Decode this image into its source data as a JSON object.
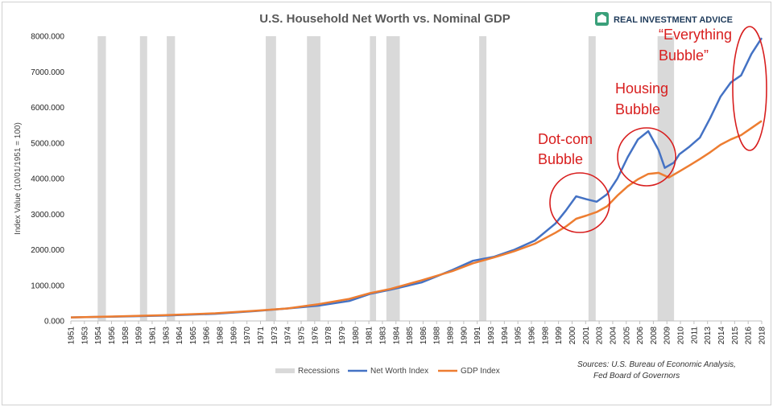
{
  "chart_data": {
    "type": "line",
    "title": "U.S. Household Net Worth vs. Nominal GDP",
    "ylabel": "Index Value (10/01/1951 = 100)",
    "xlabel": "",
    "xlim": [
      1951,
      2018
    ],
    "ylim": [
      0,
      8000
    ],
    "y_ticks": [
      "0.000",
      "1000.000",
      "2000.000",
      "3000.000",
      "4000.000",
      "5000.000",
      "6000.000",
      "7000.000",
      "8000.000"
    ],
    "y_tick_values": [
      0,
      1000,
      2000,
      3000,
      4000,
      5000,
      6000,
      7000,
      8000
    ],
    "x_ticks": [
      "1951",
      "1953",
      "1954",
      "1956",
      "1958",
      "1959",
      "1961",
      "1963",
      "1964",
      "1965",
      "1966",
      "1968",
      "1969",
      "1970",
      "1971",
      "1973",
      "1974",
      "1975",
      "1976",
      "1978",
      "1979",
      "1980",
      "1981",
      "1983",
      "1984",
      "1985",
      "1986",
      "1988",
      "1989",
      "1990",
      "1991",
      "1993",
      "1994",
      "1995",
      "1996",
      "1998",
      "1999",
      "2000",
      "2001",
      "2003",
      "2004",
      "2005",
      "2006",
      "2008",
      "2009",
      "2010",
      "2011",
      "2013",
      "2014",
      "2015",
      "2016",
      "2018"
    ],
    "grid": false,
    "legend_position": "bottom",
    "recessions": [
      [
        1953.6,
        1954.4
      ],
      [
        1957.7,
        1958.4
      ],
      [
        1960.3,
        1961.1
      ],
      [
        1969.9,
        1970.9
      ],
      [
        1973.9,
        1975.2
      ],
      [
        1980.0,
        1980.6
      ],
      [
        1981.6,
        1982.9
      ],
      [
        1990.6,
        1991.3
      ],
      [
        2001.2,
        2001.9
      ],
      [
        2007.9,
        2009.5
      ]
    ],
    "series": [
      {
        "name": "Net Worth Index",
        "color": "#4472c4",
        "points": [
          [
            1951,
            100
          ],
          [
            1955,
            120
          ],
          [
            1960,
            150
          ],
          [
            1965,
            200
          ],
          [
            1969,
            280
          ],
          [
            1972,
            350
          ],
          [
            1975,
            430
          ],
          [
            1978,
            560
          ],
          [
            1980,
            760
          ],
          [
            1982,
            880
          ],
          [
            1985,
            1080
          ],
          [
            1988,
            1430
          ],
          [
            1990,
            1690
          ],
          [
            1992,
            1800
          ],
          [
            1994,
            2000
          ],
          [
            1996,
            2260
          ],
          [
            1998,
            2740
          ],
          [
            1999,
            3100
          ],
          [
            2000,
            3500
          ],
          [
            2001,
            3420
          ],
          [
            2002,
            3350
          ],
          [
            2003,
            3560
          ],
          [
            2004,
            4000
          ],
          [
            2005,
            4600
          ],
          [
            2006,
            5100
          ],
          [
            2007,
            5330
          ],
          [
            2008,
            4800
          ],
          [
            2008.6,
            4300
          ],
          [
            2009.5,
            4450
          ],
          [
            2010,
            4680
          ],
          [
            2011,
            4900
          ],
          [
            2012,
            5150
          ],
          [
            2013,
            5700
          ],
          [
            2014,
            6300
          ],
          [
            2015,
            6700
          ],
          [
            2016,
            6900
          ],
          [
            2017,
            7500
          ],
          [
            2018,
            7950
          ]
        ]
      },
      {
        "name": "GDP Index",
        "color": "#ed7d31",
        "points": [
          [
            1951,
            100
          ],
          [
            1955,
            125
          ],
          [
            1960,
            160
          ],
          [
            1965,
            215
          ],
          [
            1969,
            290
          ],
          [
            1972,
            350
          ],
          [
            1975,
            470
          ],
          [
            1978,
            620
          ],
          [
            1980,
            780
          ],
          [
            1982,
            900
          ],
          [
            1985,
            1140
          ],
          [
            1988,
            1400
          ],
          [
            1990,
            1620
          ],
          [
            1992,
            1780
          ],
          [
            1994,
            1960
          ],
          [
            1996,
            2170
          ],
          [
            1998,
            2480
          ],
          [
            1999,
            2650
          ],
          [
            2000,
            2870
          ],
          [
            2001,
            2960
          ],
          [
            2002,
            3060
          ],
          [
            2003,
            3220
          ],
          [
            2004,
            3520
          ],
          [
            2005,
            3780
          ],
          [
            2006,
            3980
          ],
          [
            2007,
            4130
          ],
          [
            2008,
            4160
          ],
          [
            2009,
            4030
          ],
          [
            2010,
            4200
          ],
          [
            2011,
            4370
          ],
          [
            2012,
            4550
          ],
          [
            2013,
            4740
          ],
          [
            2014,
            4950
          ],
          [
            2015,
            5100
          ],
          [
            2016,
            5220
          ],
          [
            2017,
            5420
          ],
          [
            2018,
            5620
          ]
        ]
      },
      {
        "name": "Recessions",
        "color": "#d9d9d9"
      }
    ]
  },
  "annotations": [
    {
      "lines": [
        "Dot-com",
        "Bubble"
      ]
    },
    {
      "lines": [
        "Housing",
        "Bubble"
      ]
    },
    {
      "lines": [
        "“Everything",
        "Bubble”"
      ]
    }
  ],
  "brand": {
    "name": "REAL INVESTMENT ADVICE",
    "accent": "#1e3a5a",
    "icon_color": "#3aa07a"
  },
  "source": {
    "lines": [
      "Sources: U.S. Bureau of Economic Analysis,",
      "Fed Board of Governors"
    ]
  }
}
